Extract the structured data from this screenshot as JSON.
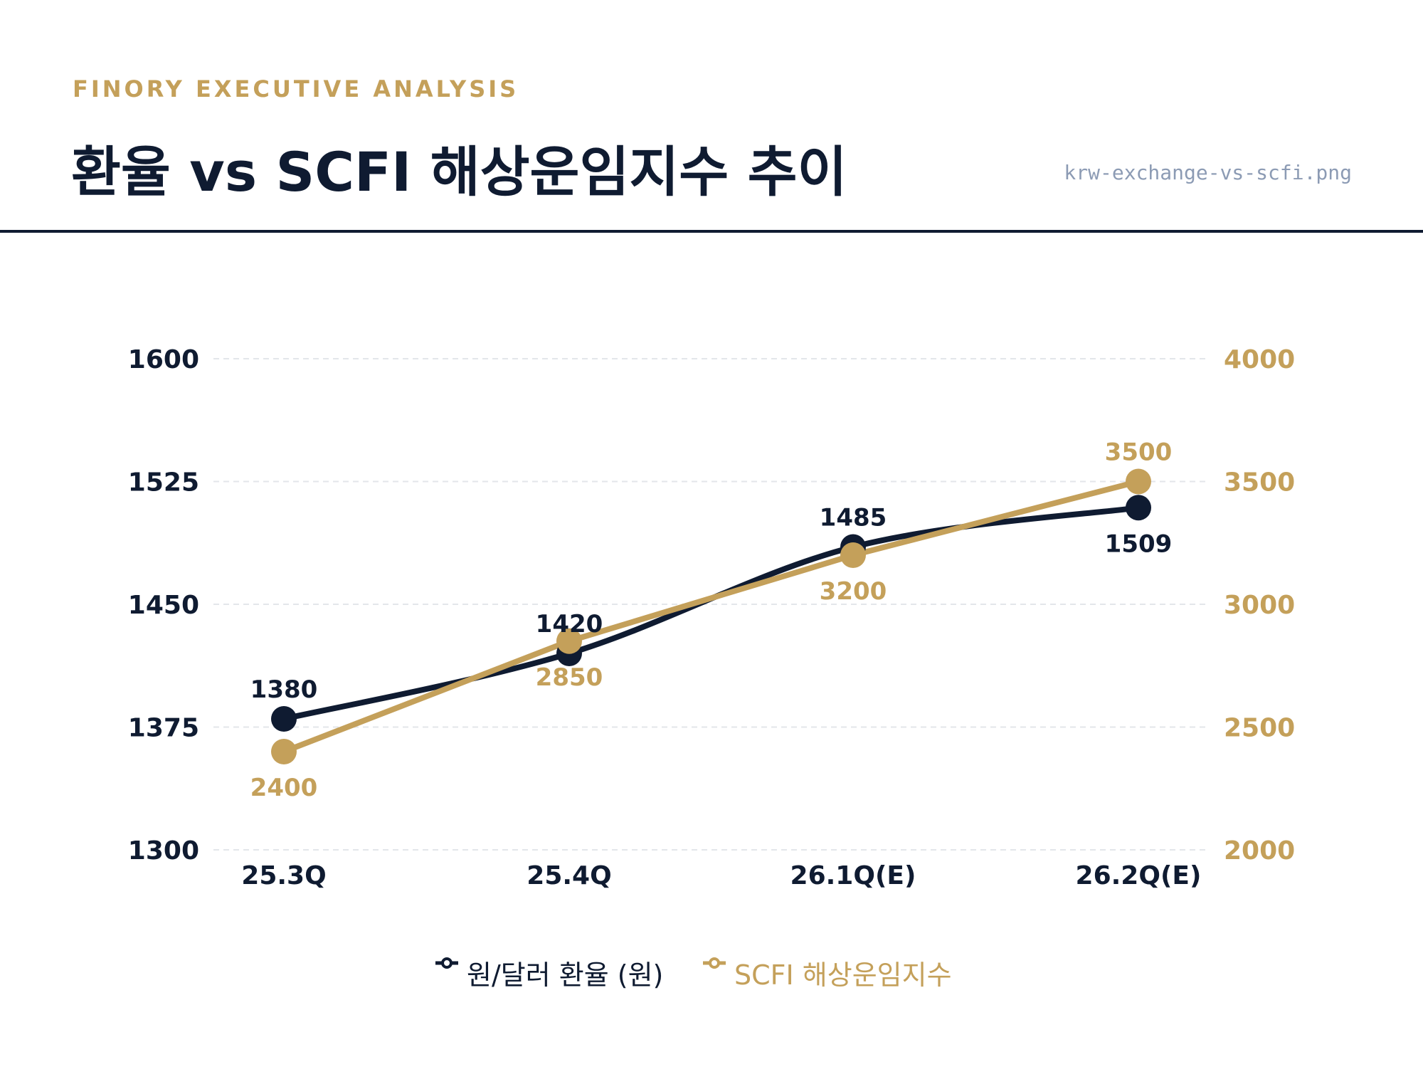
{
  "header": {
    "kicker": "FINORY EXECUTIVE ANALYSIS",
    "title": "환율 vs SCFI 해상운임지수 추이",
    "filename": "krw-exchange-vs-scfi.png"
  },
  "colors": {
    "navy": "#0f1b31",
    "gold": "#c4a05a",
    "grid": "#e3e6ea"
  },
  "chart_data": {
    "type": "line",
    "categories": [
      "25.3Q",
      "25.4Q",
      "26.1Q(E)",
      "26.2Q(E)"
    ],
    "series": [
      {
        "name": "원/달러 환율 (원)",
        "axis": "left",
        "color": "#0f1b31",
        "values": [
          1380,
          1420,
          1485,
          1509
        ],
        "labels": [
          "1380",
          "1420",
          "1485",
          "1509"
        ]
      },
      {
        "name": "SCFI 해상운임지수",
        "axis": "right",
        "color": "#c4a05a",
        "values": [
          2400,
          2850,
          3200,
          3500
        ],
        "labels": [
          "2400",
          "2850",
          "3200",
          "3500"
        ]
      }
    ],
    "y_left": {
      "range": [
        1300,
        1600
      ],
      "ticks": [
        "1300",
        "1375",
        "1450",
        "1525",
        "1600"
      ]
    },
    "y_right": {
      "range": [
        2000,
        4000
      ],
      "ticks": [
        "2000",
        "2500",
        "3000",
        "3500",
        "4000"
      ]
    },
    "grid": true,
    "legend": "bottom-center"
  }
}
